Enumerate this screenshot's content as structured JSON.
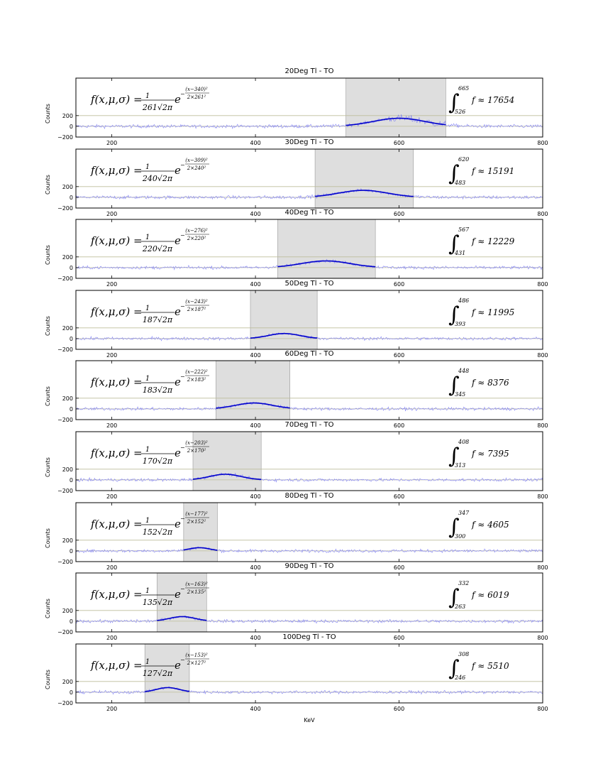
{
  "chart_data": {
    "type": "line",
    "xlabel": "KeV",
    "ylabel": "Counts",
    "xlim": [
      150,
      800
    ],
    "ylim": [
      -200,
      900
    ],
    "xticks": [
      "200",
      "400",
      "600",
      "800"
    ],
    "yticks": [
      "−200",
      "0",
      "200"
    ],
    "colors": {
      "spectrum": "#6f6ff7",
      "fit": "#0000cc",
      "region": "#c8c8c8",
      "hline": "#bdbd9a"
    },
    "panels": [
      {
        "title": "20Deg Tl - TO",
        "mu": 600,
        "sigma": 36,
        "amp": 150,
        "xmin": 526,
        "xmax": 665,
        "noise": 22,
        "formula": {
          "lhs": "f(x,μ,σ) =",
          "num": "1",
          "den": "261√2π",
          "e": "e",
          "exp_num": "(x−340)²",
          "exp_den": "2×261²"
        },
        "integral": {
          "upper": "665",
          "lower": "526",
          "result": "f ≈ 17654"
        }
      },
      {
        "title": "30Deg Tl - TO",
        "mu": 550,
        "sigma": 34,
        "amp": 130,
        "xmin": 483,
        "xmax": 620,
        "noise": 22,
        "formula": {
          "lhs": "f(x,μ,σ) =",
          "num": "1",
          "den": "240√2π",
          "e": "e",
          "exp_num": "(x−309)²",
          "exp_den": "2×240²"
        },
        "integral": {
          "upper": "620",
          "lower": "483",
          "result": "f ≈ 15191"
        }
      },
      {
        "title": "40Deg Tl - TO",
        "mu": 498,
        "sigma": 34,
        "amp": 125,
        "xmin": 431,
        "xmax": 567,
        "noise": 20,
        "formula": {
          "lhs": "f(x,μ,σ) =",
          "num": "1",
          "den": "220√2π",
          "e": "e",
          "exp_num": "(x−276)²",
          "exp_den": "2×220²"
        },
        "integral": {
          "upper": "567",
          "lower": "431",
          "result": "f ≈ 12229"
        }
      },
      {
        "title": "50Deg Tl - TO",
        "mu": 440,
        "sigma": 22,
        "amp": 95,
        "xmin": 393,
        "xmax": 486,
        "noise": 20,
        "formula": {
          "lhs": "f(x,μ,σ) =",
          "num": "1",
          "den": "187√2π",
          "e": "e",
          "exp_num": "(x−243)²",
          "exp_den": "2×187²"
        },
        "integral": {
          "upper": "486",
          "lower": "393",
          "result": "f ≈ 11995"
        }
      },
      {
        "title": "60Deg Tl - TO",
        "mu": 398,
        "sigma": 26,
        "amp": 110,
        "xmin": 345,
        "xmax": 448,
        "noise": 20,
        "formula": {
          "lhs": "f(x,μ,σ) =",
          "num": "1",
          "den": "183√2π",
          "e": "e",
          "exp_num": "(x−222)²",
          "exp_den": "2×183²"
        },
        "integral": {
          "upper": "448",
          "lower": "345",
          "result": "f ≈ 8376"
        }
      },
      {
        "title": "70Deg Tl - TO",
        "mu": 358,
        "sigma": 22,
        "amp": 105,
        "xmin": 313,
        "xmax": 408,
        "noise": 20,
        "formula": {
          "lhs": "f(x,μ,σ) =",
          "num": "1",
          "den": "170√2π",
          "e": "e",
          "exp_num": "(x−203)²",
          "exp_den": "2×170²"
        },
        "integral": {
          "upper": "408",
          "lower": "313",
          "result": "f ≈ 7395"
        }
      },
      {
        "title": "80Deg Tl - TO",
        "mu": 322,
        "sigma": 14,
        "amp": 60,
        "xmin": 300,
        "xmax": 347,
        "noise": 20,
        "formula": {
          "lhs": "f(x,μ,σ) =",
          "num": "1",
          "den": "152√2π",
          "e": "e",
          "exp_num": "(x−177)²",
          "exp_den": "2×152²"
        },
        "integral": {
          "upper": "347",
          "lower": "300",
          "result": "f ≈ 4605"
        }
      },
      {
        "title": "90Deg Tl - TO",
        "mu": 298,
        "sigma": 18,
        "amp": 85,
        "xmin": 263,
        "xmax": 332,
        "noise": 20,
        "formula": {
          "lhs": "f(x,μ,σ) =",
          "num": "1",
          "den": "135√2π",
          "e": "e",
          "exp_num": "(x−163)²",
          "exp_den": "2×135²"
        },
        "integral": {
          "upper": "332",
          "lower": "263",
          "result": "f ≈ 6019"
        }
      },
      {
        "title": "100Deg Tl - TO",
        "mu": 278,
        "sigma": 16,
        "amp": 85,
        "xmin": 246,
        "xmax": 308,
        "noise": 20,
        "formula": {
          "lhs": "f(x,μ,σ) =",
          "num": "1",
          "den": "127√2π",
          "e": "e",
          "exp_num": "(x−153)²",
          "exp_den": "2×127²"
        },
        "integral": {
          "upper": "308",
          "lower": "246",
          "result": "f ≈ 5510"
        }
      }
    ]
  }
}
